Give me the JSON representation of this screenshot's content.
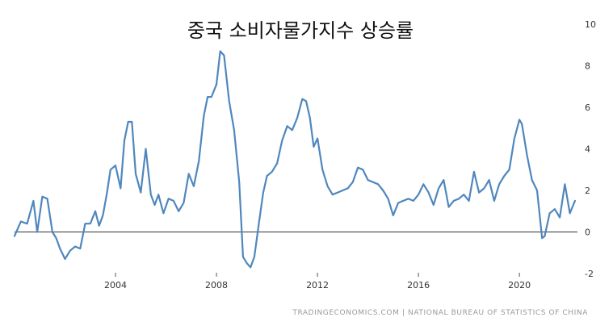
{
  "chart_data": {
    "type": "line",
    "title": "중국 소비자물가지수 상승률",
    "source": "TRADINGECONOMICS.COM | NATIONAL BUREAU OF STATISTICS OF CHINA",
    "xlabel": "",
    "ylabel": "",
    "xlim": [
      2000.0,
      2022.3
    ],
    "ylim": [
      -2,
      10
    ],
    "x_ticks": [
      2004,
      2008,
      2012,
      2016,
      2020
    ],
    "y_ticks": [
      -2,
      0,
      2,
      4,
      6,
      8,
      10
    ],
    "y_axis_side": "right",
    "zero_line": true,
    "grid": false,
    "legend": "none",
    "line_color": "#4f87bd",
    "series": [
      {
        "x": [
          2000.0,
          2000.25,
          2000.5,
          2000.75,
          2000.9,
          2001.1,
          2001.3,
          2001.5,
          2001.65,
          2001.8,
          2002.0,
          2002.2,
          2002.4,
          2002.6,
          2002.8,
          2003.0,
          2003.2,
          2003.35,
          2003.5,
          2003.65,
          2003.8,
          2004.0,
          2004.2,
          2004.35,
          2004.5,
          2004.65,
          2004.8,
          2005.0,
          2005.2,
          2005.4,
          2005.55,
          2005.7,
          2005.9,
          2006.1,
          2006.3,
          2006.5,
          2006.7,
          2006.9,
          2007.1,
          2007.3,
          2007.5,
          2007.65,
          2007.8,
          2008.0,
          2008.15,
          2008.3,
          2008.5,
          2008.7,
          2008.9,
          2009.05,
          2009.2,
          2009.35,
          2009.5,
          2009.7,
          2009.85,
          2010.0,
          2010.2,
          2010.4,
          2010.6,
          2010.8,
          2011.0,
          2011.2,
          2011.4,
          2011.55,
          2011.7,
          2011.85,
          2012.0,
          2012.2,
          2012.4,
          2012.6,
          2012.8,
          2013.0,
          2013.2,
          2013.4,
          2013.6,
          2013.8,
          2014.0,
          2014.2,
          2014.4,
          2014.6,
          2014.8,
          2015.0,
          2015.2,
          2015.4,
          2015.6,
          2015.8,
          2016.0,
          2016.2,
          2016.4,
          2016.6,
          2016.8,
          2017.0,
          2017.2,
          2017.4,
          2017.6,
          2017.8,
          2018.0,
          2018.2,
          2018.4,
          2018.6,
          2018.8,
          2019.0,
          2019.2,
          2019.4,
          2019.6,
          2019.8,
          2020.0,
          2020.1,
          2020.3,
          2020.5,
          2020.7,
          2020.9,
          2021.0,
          2021.2,
          2021.4,
          2021.6,
          2021.8,
          2022.0,
          2022.2
        ],
        "y": [
          -0.2,
          0.5,
          0.4,
          1.5,
          0.0,
          1.7,
          1.6,
          0.0,
          -0.3,
          -0.8,
          -1.3,
          -0.9,
          -0.7,
          -0.8,
          0.4,
          0.4,
          1.0,
          0.3,
          0.8,
          1.8,
          3.0,
          3.2,
          2.1,
          4.4,
          5.3,
          5.3,
          2.8,
          1.9,
          4.0,
          1.8,
          1.3,
          1.8,
          0.9,
          1.6,
          1.5,
          1.0,
          1.4,
          2.8,
          2.2,
          3.4,
          5.6,
          6.5,
          6.5,
          7.1,
          8.7,
          8.5,
          6.3,
          4.9,
          2.4,
          -1.2,
          -1.5,
          -1.7,
          -1.2,
          0.6,
          1.9,
          2.7,
          2.9,
          3.3,
          4.4,
          5.1,
          4.9,
          5.5,
          6.4,
          6.3,
          5.5,
          4.1,
          4.5,
          3.0,
          2.2,
          1.8,
          1.9,
          2.0,
          2.1,
          2.4,
          3.1,
          3.0,
          2.5,
          2.4,
          2.3,
          2.0,
          1.6,
          0.8,
          1.4,
          1.5,
          1.6,
          1.5,
          1.8,
          2.3,
          1.9,
          1.3,
          2.1,
          2.5,
          1.2,
          1.5,
          1.6,
          1.8,
          1.5,
          2.9,
          1.9,
          2.1,
          2.5,
          1.5,
          2.3,
          2.7,
          3.0,
          4.5,
          5.4,
          5.2,
          3.7,
          2.5,
          2.0,
          -0.3,
          -0.2,
          0.9,
          1.1,
          0.7,
          2.3,
          0.9,
          1.5
        ]
      }
    ]
  }
}
